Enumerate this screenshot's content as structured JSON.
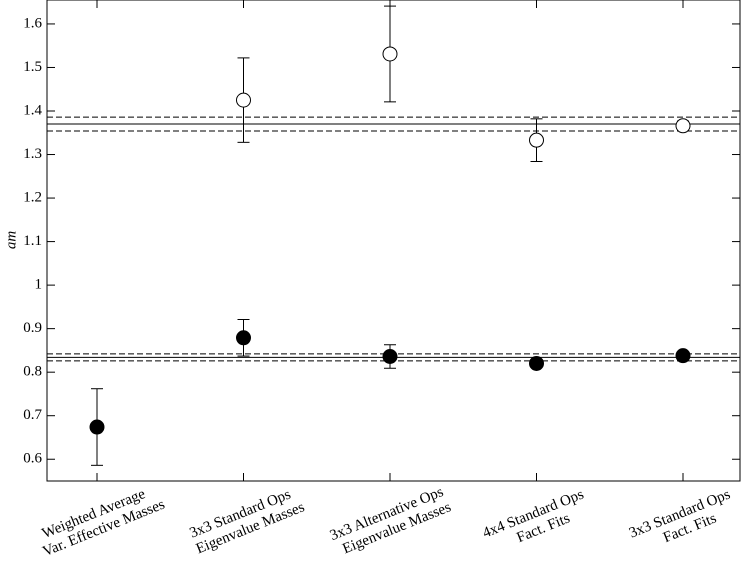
{
  "chart_data": {
    "type": "errorbar",
    "y_label": "am",
    "categories": [
      [
        "Weighted Average",
        "Var. Effective Masses"
      ],
      [
        "3x3 Standard Ops",
        "Eigenvalue Masses"
      ],
      [
        "3x3 Alternative Ops",
        "Eigenvalue Masses"
      ],
      [
        "4x4 Standard Ops",
        "Fact. Fits"
      ],
      [
        "3x3 Standard Ops",
        "Fact. Fits"
      ]
    ],
    "series": [
      {
        "marker": "open",
        "color": "#000000",
        "values": [
          null,
          1.425,
          1.531,
          1.333,
          1.366
        ],
        "errors": [
          null,
          0.097,
          0.11,
          0.049,
          0.011
        ]
      },
      {
        "marker": "filled",
        "color": "#000000",
        "values": [
          0.674,
          0.879,
          0.836,
          0.82,
          0.838
        ],
        "errors": [
          0.088,
          0.042,
          0.027,
          0,
          0
        ]
      }
    ],
    "bands": [
      {
        "value": 1.37,
        "error": 0.016
      },
      {
        "value": 0.834,
        "error": 0.008
      }
    ],
    "ylim": [
      0.55,
      1.655
    ],
    "yticks": [
      0.6,
      0.7,
      0.8,
      0.9,
      1,
      1.1,
      1.2,
      1.3,
      1.4,
      1.5,
      1.6
    ]
  }
}
